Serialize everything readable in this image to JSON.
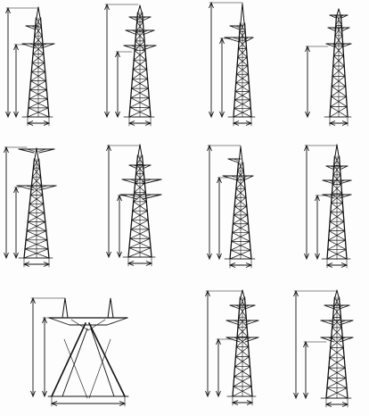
{
  "figure": {
    "description_visible_text": "",
    "ink_color": "#111111",
    "paper_color": "#fdfdfd"
  },
  "towers": [
    {
      "id": "t1",
      "type": "double-circuit-barrel",
      "crossarms": 3,
      "has_height_marks": true
    },
    {
      "id": "t2",
      "type": "double-circuit-three-tier",
      "crossarms": 3,
      "has_height_marks": true
    },
    {
      "id": "t3",
      "type": "single-circuit-triangle",
      "crossarms": 2,
      "has_height_marks": true
    },
    {
      "id": "t4",
      "type": "double-circuit-narrow",
      "crossarms": 3,
      "has_height_marks": true
    },
    {
      "id": "t5",
      "type": "barrel-wide-top",
      "crossarms": 2,
      "has_height_marks": true
    },
    {
      "id": "t6",
      "type": "double-circuit-three-tier",
      "crossarms": 3,
      "has_height_marks": true
    },
    {
      "id": "t7",
      "type": "single-circuit-triangle",
      "crossarms": 2,
      "has_height_marks": true
    },
    {
      "id": "t8",
      "type": "double-circuit-narrow",
      "crossarms": 3,
      "has_height_marks": true
    },
    {
      "id": "t9",
      "type": "portal-a-frame",
      "crossarms": 1,
      "has_height_marks": true
    },
    {
      "id": "t10",
      "type": "double-circuit-three-tier",
      "crossarms": 3,
      "has_height_marks": true
    },
    {
      "id": "t11",
      "type": "double-circuit-three-tier",
      "crossarms": 3,
      "has_height_marks": true
    }
  ]
}
